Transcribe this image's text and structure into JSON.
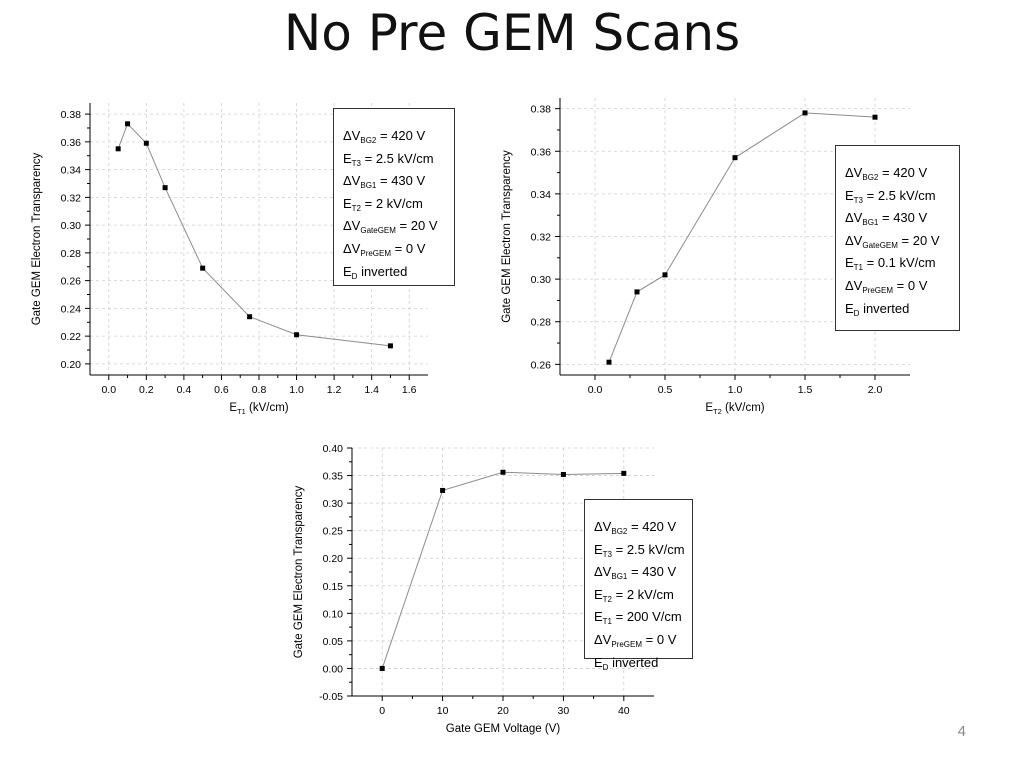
{
  "slide": {
    "title": "No Pre GEM Scans",
    "page_number": "4"
  },
  "chart_data": [
    {
      "type": "line",
      "xlabel_main": "E",
      "xlabel_sub": "T1",
      "xlabel_rest": " (kV/cm)",
      "ylabel": "Gate GEM Electron Transparency",
      "xlim": [
        -0.1,
        1.7
      ],
      "ylim": [
        0.192,
        0.388
      ],
      "xticks": [
        0.0,
        0.2,
        0.4,
        0.6,
        0.8,
        1.0,
        1.2,
        1.4,
        1.6
      ],
      "yticks": [
        0.2,
        0.22,
        0.24,
        0.26,
        0.28,
        0.3,
        0.32,
        0.34,
        0.36,
        0.38
      ],
      "xtick_labels": [
        "0.0",
        "0.2",
        "0.4",
        "0.6",
        "0.8",
        "1.0",
        "1.2",
        "1.4",
        "1.6"
      ],
      "ytick_labels": [
        "0.20",
        "0.22",
        "0.24",
        "0.26",
        "0.28",
        "0.30",
        "0.32",
        "0.34",
        "0.36",
        "0.38"
      ],
      "grid": true,
      "x": [
        0.05,
        0.1,
        0.2,
        0.3,
        0.5,
        0.75,
        1.0,
        1.5
      ],
      "y": [
        0.355,
        0.373,
        0.359,
        0.327,
        0.269,
        0.234,
        0.221,
        0.213
      ],
      "legend": [
        {
          "prefix": "ΔV",
          "sub": "BG2",
          "text": " = 420 V"
        },
        {
          "prefix": "E",
          "sub": "T3",
          "text": " = 2.5 kV/cm"
        },
        {
          "prefix": "ΔV",
          "sub": "BG1",
          "text": " = 430 V"
        },
        {
          "prefix": "E",
          "sub": "T2",
          "text": " = 2 kV/cm"
        },
        {
          "prefix": "ΔV",
          "sub": "GateGEM",
          "text": " = 20 V"
        },
        {
          "prefix": "ΔV",
          "sub": "PreGEM",
          "text": " = 0 V"
        },
        {
          "prefix": "E",
          "sub": "D",
          "text": " inverted"
        }
      ]
    },
    {
      "type": "line",
      "xlabel_main": "E",
      "xlabel_sub": "T2",
      "xlabel_rest": " (kV/cm)",
      "ylabel": "Gate GEM Electron Transparency",
      "xlim": [
        -0.25,
        2.25
      ],
      "ylim": [
        0.255,
        0.385
      ],
      "xticks": [
        0.0,
        0.5,
        1.0,
        1.5,
        2.0
      ],
      "yticks": [
        0.26,
        0.28,
        0.3,
        0.32,
        0.34,
        0.36,
        0.38
      ],
      "xtick_labels": [
        "0.0",
        "0.5",
        "1.0",
        "1.5",
        "2.0"
      ],
      "ytick_labels": [
        "0.26",
        "0.28",
        "0.30",
        "0.32",
        "0.34",
        "0.36",
        "0.38"
      ],
      "grid": true,
      "x": [
        0.1,
        0.3,
        0.5,
        1.0,
        1.5,
        2.0
      ],
      "y": [
        0.261,
        0.294,
        0.302,
        0.357,
        0.378,
        0.376
      ],
      "legend": [
        {
          "prefix": "ΔV",
          "sub": "BG2",
          "text": " = 420 V"
        },
        {
          "prefix": "E",
          "sub": "T3",
          "text": " = 2.5 kV/cm"
        },
        {
          "prefix": "ΔV",
          "sub": "BG1",
          "text": " = 430 V"
        },
        {
          "prefix": "ΔV",
          "sub": "GateGEM",
          "text": " = 20 V"
        },
        {
          "prefix": "E",
          "sub": "T1",
          "text": " = 0.1 kV/cm"
        },
        {
          "prefix": "ΔV",
          "sub": "PreGEM",
          "text": " = 0 V"
        },
        {
          "prefix": "E",
          "sub": "D",
          "text": " inverted"
        }
      ]
    },
    {
      "type": "line",
      "xlabel_main": "Gate GEM Voltage (V)",
      "xlabel_sub": "",
      "xlabel_rest": "",
      "ylabel": "Gate GEM Electron Transparency",
      "xlim": [
        -5,
        45
      ],
      "ylim": [
        -0.05,
        0.4
      ],
      "xticks": [
        0,
        10,
        20,
        30,
        40
      ],
      "yticks": [
        -0.05,
        0.0,
        0.05,
        0.1,
        0.15,
        0.2,
        0.25,
        0.3,
        0.35,
        0.4
      ],
      "xtick_labels": [
        "0",
        "10",
        "20",
        "30",
        "40"
      ],
      "ytick_labels": [
        "-0.05",
        "0.00",
        "0.05",
        "0.10",
        "0.15",
        "0.20",
        "0.25",
        "0.30",
        "0.35",
        "0.40"
      ],
      "grid": true,
      "x": [
        0,
        10,
        20,
        30,
        40
      ],
      "y": [
        0.0,
        0.323,
        0.356,
        0.352,
        0.354
      ],
      "legend": [
        {
          "prefix": "ΔV",
          "sub": "BG2",
          "text": " = 420 V"
        },
        {
          "prefix": "E",
          "sub": "T3",
          "text": " = 2.5 kV/cm"
        },
        {
          "prefix": "ΔV",
          "sub": "BG1",
          "text": " = 430 V"
        },
        {
          "prefix": "E",
          "sub": "T2",
          "text": " = 2 kV/cm"
        },
        {
          "prefix": "E",
          "sub": "T1",
          "text": " = 200 V/cm"
        },
        {
          "prefix": "ΔV",
          "sub": "PreGEM",
          "text": " = 0 V"
        },
        {
          "prefix": "E",
          "sub": "D",
          "text": " inverted"
        }
      ]
    }
  ]
}
